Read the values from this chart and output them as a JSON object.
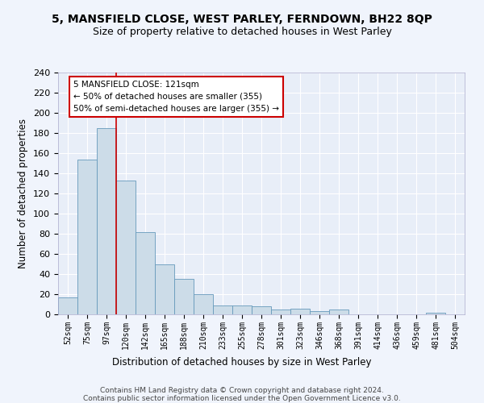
{
  "title1": "5, MANSFIELD CLOSE, WEST PARLEY, FERNDOWN, BH22 8QP",
  "title2": "Size of property relative to detached houses in West Parley",
  "xlabel": "Distribution of detached houses by size in West Parley",
  "ylabel": "Number of detached properties",
  "bar_color": "#ccdce8",
  "bar_edge_color": "#6699bb",
  "background_color": "#e8eef8",
  "tick_labels": [
    "52sqm",
    "75sqm",
    "97sqm",
    "120sqm",
    "142sqm",
    "165sqm",
    "188sqm",
    "210sqm",
    "233sqm",
    "255sqm",
    "278sqm",
    "301sqm",
    "323sqm",
    "346sqm",
    "368sqm",
    "391sqm",
    "414sqm",
    "436sqm",
    "459sqm",
    "481sqm",
    "504sqm"
  ],
  "bar_heights": [
    17,
    154,
    185,
    133,
    82,
    50,
    35,
    20,
    9,
    9,
    8,
    5,
    6,
    3,
    5,
    0,
    0,
    0,
    0,
    2,
    0
  ],
  "vline_x_pos": 2.5,
  "vline_color": "#cc0000",
  "annotation_line1": "5 MANSFIELD CLOSE: 121sqm",
  "annotation_line2": "← 50% of detached houses are smaller (355)",
  "annotation_line3": "50% of semi-detached houses are larger (355) →",
  "annotation_box_color": "#ffffff",
  "annotation_box_edge_color": "#cc0000",
  "ylim": [
    0,
    240
  ],
  "yticks": [
    0,
    20,
    40,
    60,
    80,
    100,
    120,
    140,
    160,
    180,
    200,
    220,
    240
  ],
  "footer1": "Contains HM Land Registry data © Crown copyright and database right 2024.",
  "footer2": "Contains public sector information licensed under the Open Government Licence v3.0."
}
